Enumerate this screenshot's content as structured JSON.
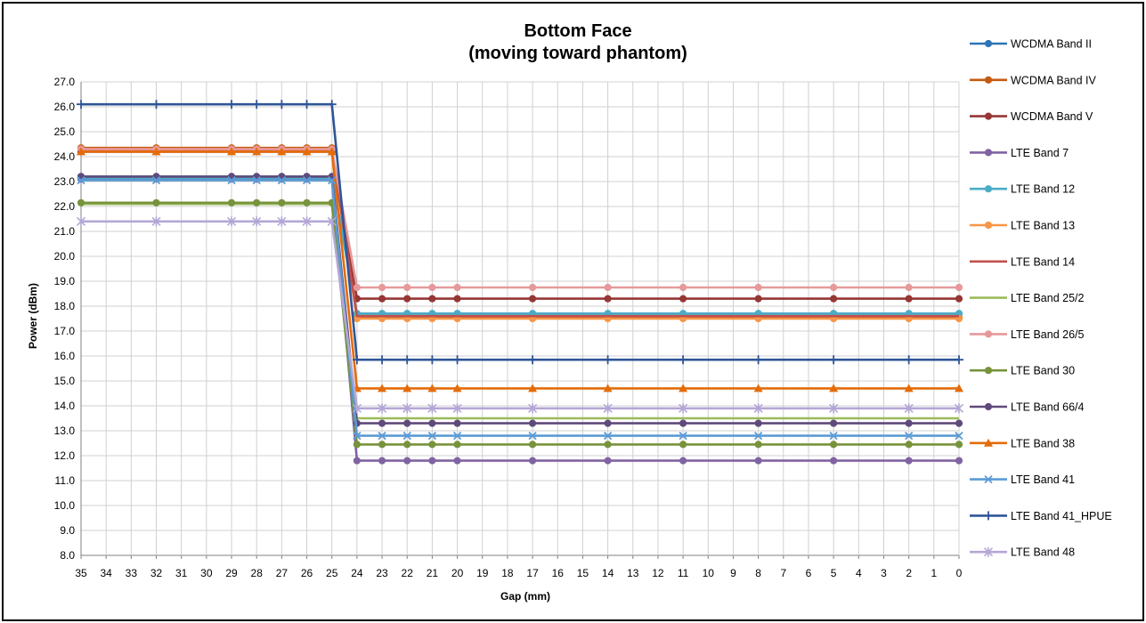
{
  "chart_data": {
    "type": "line",
    "title": [
      "Bottom Face",
      "(moving toward phantom)"
    ],
    "xlabel": "Gap (mm)",
    "ylabel": "Power (dBm)",
    "x_ticks": [
      "35",
      "34",
      "33",
      "32",
      "31",
      "30",
      "29",
      "28",
      "27",
      "26",
      "25",
      "24",
      "23",
      "22",
      "21",
      "20",
      "19",
      "18",
      "17",
      "16",
      "15",
      "14",
      "13",
      "12",
      "11",
      "10",
      "9",
      "8",
      "7",
      "6",
      "5",
      "4",
      "3",
      "2",
      "1",
      "0"
    ],
    "x_reversed": true,
    "xlim": [
      35,
      0
    ],
    "ylim": [
      8.0,
      27.0
    ],
    "y_ticks": [
      "8.0",
      "9.0",
      "10.0",
      "11.0",
      "12.0",
      "13.0",
      "14.0",
      "15.0",
      "16.0",
      "17.0",
      "18.0",
      "19.0",
      "20.0",
      "21.0",
      "22.0",
      "23.0",
      "24.0",
      "25.0",
      "26.0",
      "27.0"
    ],
    "grid": true,
    "legend_position": "right",
    "x_points": [
      35,
      32,
      29,
      28,
      27,
      26,
      25,
      24,
      23,
      22,
      21,
      20,
      17,
      14,
      11,
      8,
      5,
      2,
      0
    ],
    "series": [
      {
        "name": "WCDMA Band II",
        "color": "#2E75B6",
        "marker": "circle",
        "high": 23.2,
        "low": 17.7
      },
      {
        "name": "WCDMA Band IV",
        "color": "#C55A11",
        "marker": "circle",
        "high": 24.35,
        "low": 17.55
      },
      {
        "name": "WCDMA Band V",
        "color": "#953735",
        "marker": "circle",
        "high": 24.2,
        "low": 18.3
      },
      {
        "name": "LTE Band 7",
        "color": "#8064A2",
        "marker": "circle",
        "high": 23.1,
        "low": 11.8
      },
      {
        "name": "LTE Band 12",
        "color": "#4BACC6",
        "marker": "circle",
        "high": 23.15,
        "low": 17.7
      },
      {
        "name": "LTE Band 13",
        "color": "#F79646",
        "marker": "circle",
        "high": 24.3,
        "low": 17.5
      },
      {
        "name": "LTE Band 14",
        "color": "#C0504D",
        "marker": "none",
        "high": 24.25,
        "low": 17.6
      },
      {
        "name": "LTE Band 25/2",
        "color": "#9BBB59",
        "marker": "none",
        "high": 22.1,
        "low": 13.5
      },
      {
        "name": "LTE Band 26/5",
        "color": "#E6999A",
        "marker": "circle",
        "high": 24.3,
        "low": 18.75
      },
      {
        "name": "LTE Band 30",
        "color": "#77933C",
        "marker": "circle",
        "high": 22.15,
        "low": 12.45
      },
      {
        "name": "LTE Band 66/4",
        "color": "#604A7B",
        "marker": "circle",
        "high": 23.2,
        "low": 13.3
      },
      {
        "name": "LTE Band 38",
        "color": "#E46C0A",
        "marker": "triangle",
        "high": 24.2,
        "low": 14.7
      },
      {
        "name": "LTE Band 41",
        "color": "#5B9BD5",
        "marker": "x",
        "high": 23.05,
        "low": 12.8
      },
      {
        "name": "LTE Band 41_HPUE",
        "color": "#2F5597",
        "marker": "plus",
        "high": 26.1,
        "low": 15.85
      },
      {
        "name": "LTE Band 48",
        "color": "#B4A7D6",
        "marker": "star",
        "high": 21.4,
        "low": 13.9
      }
    ]
  }
}
